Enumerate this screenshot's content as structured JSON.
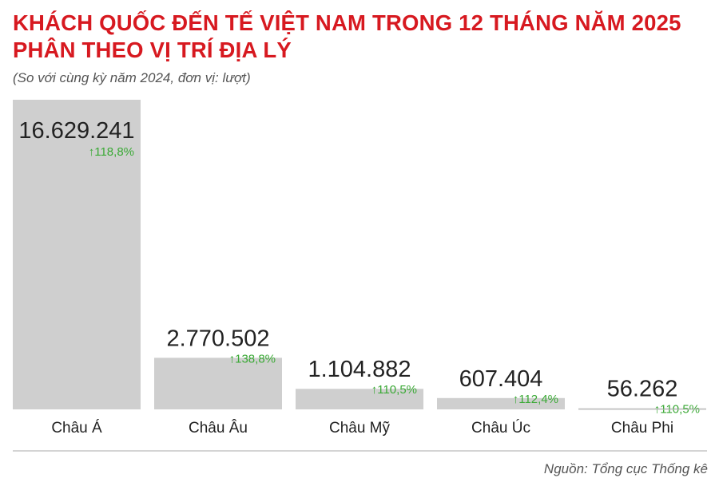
{
  "header": {
    "title_line1": "KHÁCH QUỐC ĐẾN TẾ VIỆT NAM TRONG 12 THÁNG NĂM 2025",
    "title_line2": "PHÂN THEO VỊ TRÍ ĐỊA LÝ",
    "subtitle": "(So với cùng kỳ năm 2024, đơn vị: lượt)"
  },
  "footer": {
    "source": "Nguồn: Tổng cục Thống kê"
  },
  "chart_data": {
    "type": "bar",
    "title": "KHÁCH QUỐC ĐẾN TẾ VIỆT NAM TRONG 12 THÁNG NĂM 2025 PHÂN THEO VỊ TRÍ ĐỊA LÝ",
    "categories": [
      "Châu Á",
      "Châu Âu",
      "Châu Mỹ",
      "Châu Úc",
      "Châu Phi"
    ],
    "values": [
      16629241,
      2770502,
      1104882,
      607404,
      56262
    ],
    "value_labels": [
      "16.629.241",
      "2.770.502",
      "1.104.882",
      "607.404",
      "56.262"
    ],
    "change_labels": [
      "118,8%",
      "138,8%",
      "110,5%",
      "112,4%",
      "110,5%"
    ],
    "change_arrow": "↑",
    "ylim": [
      0,
      16629241
    ],
    "grid": false,
    "colors": {
      "bar": "#cfcfcf",
      "value_text": "#222222",
      "change_text": "#3aa935",
      "axis": "#bbbbbb"
    }
  }
}
